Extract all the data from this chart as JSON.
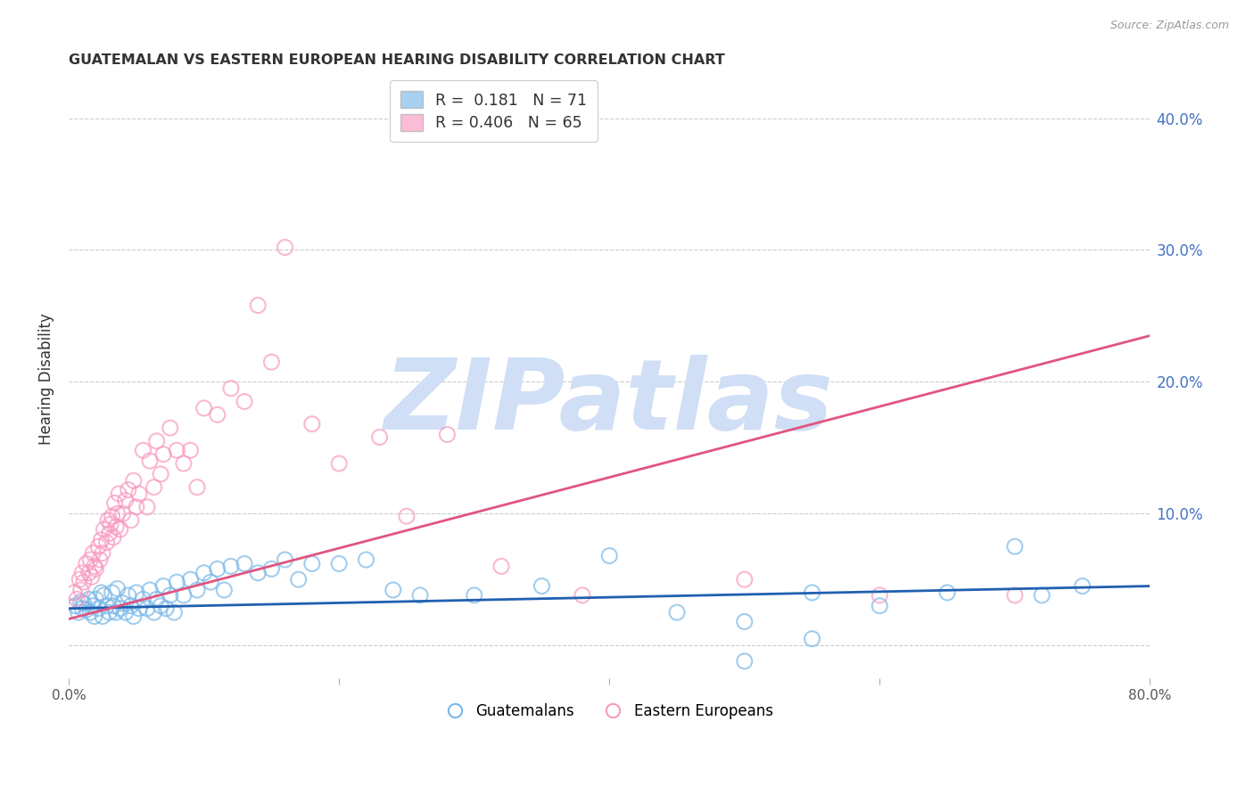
{
  "title": "GUATEMALAN VS EASTERN EUROPEAN HEARING DISABILITY CORRELATION CHART",
  "source": "Source: ZipAtlas.com",
  "ylabel": "Hearing Disability",
  "xmin": 0.0,
  "xmax": 0.8,
  "ymin": -0.025,
  "ymax": 0.43,
  "yticks": [
    0.0,
    0.1,
    0.2,
    0.3,
    0.4
  ],
  "ytick_labels": [
    "",
    "10.0%",
    "20.0%",
    "30.0%",
    "40.0%"
  ],
  "xticks": [
    0.0,
    0.2,
    0.4,
    0.6,
    0.8
  ],
  "xtick_labels": [
    "0.0%",
    "",
    "",
    "",
    "80.0%"
  ],
  "blue_R": 0.181,
  "blue_N": 71,
  "pink_R": 0.406,
  "pink_N": 65,
  "blue_color": "#7ab8e8",
  "pink_color": "#f899c0",
  "blue_line_color": "#2060b0",
  "pink_line_color": "#e05580",
  "watermark_color": "#d0dff5",
  "legend_label_blue": "Guatemalans",
  "legend_label_pink": "Eastern Europeans",
  "blue_trend_x0": 0.0,
  "blue_trend_y0": 0.028,
  "blue_trend_x1": 0.8,
  "blue_trend_y1": 0.045,
  "pink_trend_x0": 0.0,
  "pink_trend_y0": 0.02,
  "pink_trend_x1": 0.8,
  "pink_trend_y1": 0.235,
  "blue_scatter_x": [
    0.005,
    0.007,
    0.009,
    0.01,
    0.011,
    0.013,
    0.015,
    0.016,
    0.018,
    0.019,
    0.02,
    0.022,
    0.024,
    0.025,
    0.026,
    0.028,
    0.03,
    0.032,
    0.033,
    0.035,
    0.036,
    0.038,
    0.04,
    0.042,
    0.044,
    0.046,
    0.048,
    0.05,
    0.052,
    0.055,
    0.058,
    0.06,
    0.063,
    0.065,
    0.068,
    0.07,
    0.072,
    0.075,
    0.078,
    0.08,
    0.085,
    0.09,
    0.095,
    0.1,
    0.105,
    0.11,
    0.115,
    0.12,
    0.13,
    0.14,
    0.15,
    0.16,
    0.17,
    0.18,
    0.2,
    0.22,
    0.24,
    0.26,
    0.3,
    0.35,
    0.4,
    0.45,
    0.5,
    0.55,
    0.6,
    0.65,
    0.7,
    0.72,
    0.75,
    0.5,
    0.55
  ],
  "blue_scatter_y": [
    0.03,
    0.025,
    0.033,
    0.028,
    0.032,
    0.027,
    0.035,
    0.025,
    0.03,
    0.022,
    0.035,
    0.028,
    0.04,
    0.022,
    0.038,
    0.03,
    0.025,
    0.04,
    0.03,
    0.025,
    0.043,
    0.028,
    0.032,
    0.025,
    0.038,
    0.03,
    0.022,
    0.04,
    0.028,
    0.035,
    0.028,
    0.042,
    0.025,
    0.035,
    0.03,
    0.045,
    0.028,
    0.038,
    0.025,
    0.048,
    0.038,
    0.05,
    0.042,
    0.055,
    0.048,
    0.058,
    0.042,
    0.06,
    0.062,
    0.055,
    0.058,
    0.065,
    0.05,
    0.062,
    0.062,
    0.065,
    0.042,
    0.038,
    0.038,
    0.045,
    0.068,
    0.025,
    0.018,
    0.04,
    0.03,
    0.04,
    0.075,
    0.038,
    0.045,
    -0.012,
    0.005
  ],
  "pink_scatter_x": [
    0.004,
    0.006,
    0.008,
    0.009,
    0.01,
    0.011,
    0.013,
    0.015,
    0.016,
    0.017,
    0.018,
    0.019,
    0.02,
    0.022,
    0.023,
    0.024,
    0.025,
    0.026,
    0.028,
    0.029,
    0.03,
    0.031,
    0.032,
    0.033,
    0.034,
    0.035,
    0.036,
    0.037,
    0.038,
    0.04,
    0.042,
    0.044,
    0.046,
    0.048,
    0.05,
    0.052,
    0.055,
    0.058,
    0.06,
    0.063,
    0.065,
    0.068,
    0.07,
    0.075,
    0.08,
    0.085,
    0.09,
    0.095,
    0.1,
    0.11,
    0.12,
    0.13,
    0.14,
    0.15,
    0.16,
    0.18,
    0.2,
    0.23,
    0.25,
    0.28,
    0.32,
    0.38,
    0.5,
    0.6,
    0.7
  ],
  "pink_scatter_y": [
    0.04,
    0.035,
    0.05,
    0.042,
    0.055,
    0.048,
    0.062,
    0.055,
    0.065,
    0.052,
    0.07,
    0.06,
    0.058,
    0.075,
    0.065,
    0.08,
    0.07,
    0.088,
    0.078,
    0.095,
    0.085,
    0.092,
    0.098,
    0.082,
    0.108,
    0.09,
    0.1,
    0.115,
    0.088,
    0.1,
    0.11,
    0.118,
    0.095,
    0.125,
    0.105,
    0.115,
    0.148,
    0.105,
    0.14,
    0.12,
    0.155,
    0.13,
    0.145,
    0.165,
    0.148,
    0.138,
    0.148,
    0.12,
    0.18,
    0.175,
    0.195,
    0.185,
    0.258,
    0.215,
    0.302,
    0.168,
    0.138,
    0.158,
    0.098,
    0.16,
    0.06,
    0.038,
    0.05,
    0.038,
    0.038
  ]
}
